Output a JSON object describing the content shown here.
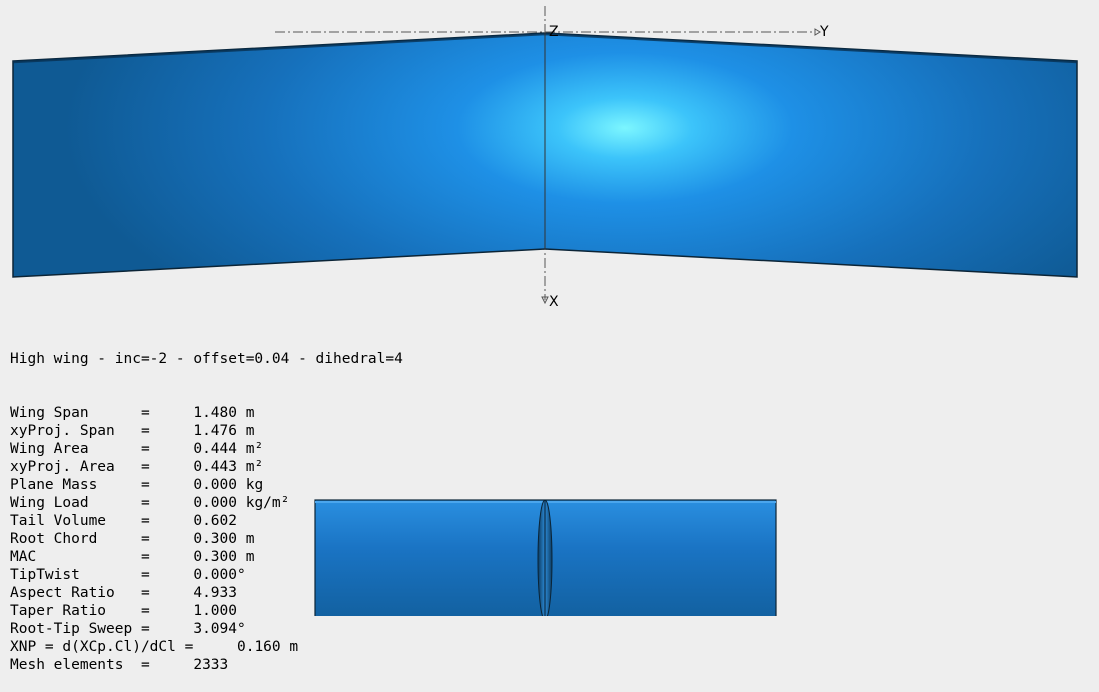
{
  "viewer": {
    "axes": {
      "z_label": "Z",
      "y_label": "Y",
      "x_label": "X"
    },
    "colors": {
      "background": "#eeeeee",
      "wing_highlight": "#7cf6ff",
      "wing_mid": "#1e90e6",
      "wing_dark": "#0f5a94",
      "outline": "#0b2436"
    }
  },
  "info": {
    "title": "High wing - inc=-2 - offset=0.04 - dihedral=4",
    "rows": [
      {
        "label": "Wing Span      =",
        "value": "1.480 m"
      },
      {
        "label": "xyProj. Span   =",
        "value": "1.476 m"
      },
      {
        "label": "Wing Area      =",
        "value": "0.444 m²"
      },
      {
        "label": "xyProj. Area   =",
        "value": "0.443 m²"
      },
      {
        "label": "Plane Mass     =",
        "value": "0.000 kg"
      },
      {
        "label": "Wing Load      =",
        "value": "0.000 kg/m²"
      },
      {
        "label": "Tail Volume    =",
        "value": "0.602"
      },
      {
        "label": "Root Chord     =",
        "value": "0.300 m"
      },
      {
        "label": "MAC            =",
        "value": "0.300 m"
      },
      {
        "label": "TipTwist       =",
        "value": "0.000°"
      },
      {
        "label": "Aspect Ratio   =",
        "value": "4.933"
      },
      {
        "label": "Taper Ratio    =",
        "value": "1.000"
      },
      {
        "label": "Root-Tip Sweep =",
        "value": "3.094°"
      },
      {
        "label": "XNP = d(XCp.Cl)/dCl =",
        "value": "0.160 m"
      },
      {
        "label": "Mesh elements  =",
        "value": "2333"
      }
    ]
  }
}
